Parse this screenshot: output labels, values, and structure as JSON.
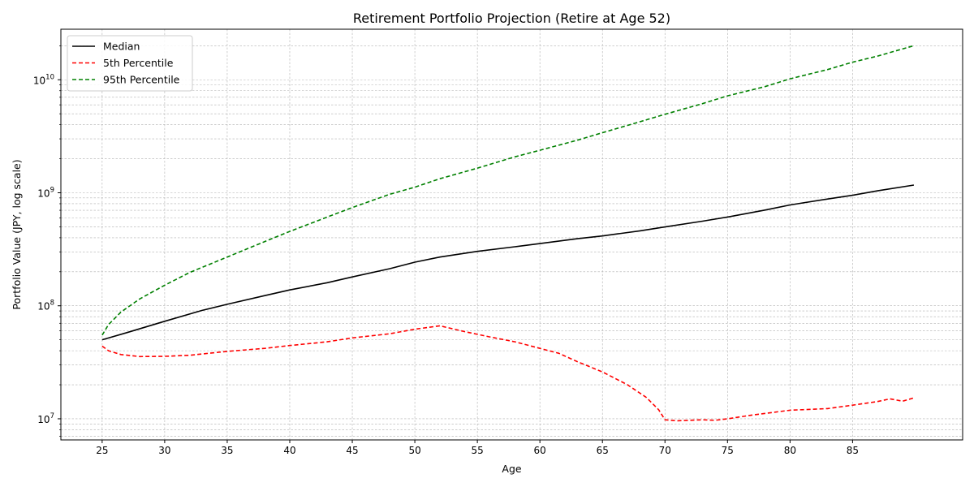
{
  "chart_data": {
    "type": "line",
    "title": "Retirement Portfolio Projection (Retire at Age 52)",
    "xlabel": "Age",
    "ylabel": "Portfolio Value (JPY, log scale)",
    "y_scale": "log",
    "xlim": [
      21.7,
      93.8
    ],
    "ylim": [
      6500000,
      28000000000
    ],
    "x_ticks": [
      25,
      30,
      35,
      40,
      45,
      50,
      55,
      60,
      65,
      70,
      75,
      80,
      85
    ],
    "y_tick_exponents": [
      7,
      8,
      9,
      10
    ],
    "grid": true,
    "legend_position": "top-left",
    "series": [
      {
        "name": "Median",
        "color": "#000000",
        "dash": "solid",
        "x": [
          25,
          27,
          30,
          33,
          35,
          38,
          40,
          43,
          45,
          48,
          50,
          52,
          55,
          58,
          60,
          63,
          65,
          68,
          70,
          73,
          75,
          78,
          80,
          83,
          85,
          87,
          89.9
        ],
        "values": [
          50000000,
          58000000,
          73000000,
          91000000,
          103000000,
          123000000,
          138000000,
          160000000,
          180000000,
          213000000,
          243000000,
          270000000,
          303000000,
          333000000,
          355000000,
          392000000,
          415000000,
          460000000,
          498000000,
          560000000,
          610000000,
          703000000,
          780000000,
          880000000,
          950000000,
          1040000000,
          1170000000
        ]
      },
      {
        "name": "5th Percentile",
        "color": "#ff0000",
        "dash": "dashed",
        "x": [
          25,
          25.5,
          26.5,
          28,
          30,
          32,
          35,
          38,
          40,
          43,
          45,
          48,
          50,
          52,
          54,
          56,
          58,
          60,
          61.5,
          63,
          65,
          67,
          68.5,
          69.5,
          70,
          71,
          72,
          73,
          74,
          75,
          77,
          80,
          83,
          85,
          87,
          88,
          89,
          89.9
        ],
        "values": [
          44000000,
          40000000,
          37000000,
          35500000,
          35700000,
          36500000,
          39500000,
          42000000,
          44500000,
          48000000,
          52000000,
          56500000,
          62000000,
          66500000,
          59000000,
          53000000,
          48000000,
          42000000,
          38000000,
          32000000,
          26000000,
          20000000,
          15500000,
          12000000,
          9800000,
          9600000,
          9700000,
          9800000,
          9700000,
          10000000,
          10800000,
          11900000,
          12300000,
          13200000,
          14200000,
          15000000,
          14300000,
          15300000
        ]
      },
      {
        "name": "95th Percentile",
        "color": "#008000",
        "dash": "dashed",
        "x": [
          25,
          25.5,
          26.5,
          28,
          30,
          32,
          35,
          38,
          40,
          43,
          45,
          48,
          50,
          52,
          55,
          58,
          60,
          63,
          65,
          68,
          70,
          73,
          75,
          78,
          80,
          83,
          85,
          87,
          89.9
        ],
        "values": [
          55000000,
          68000000,
          88000000,
          115000000,
          152000000,
          197000000,
          270000000,
          370000000,
          455000000,
          610000000,
          740000000,
          970000000,
          1120000000,
          1330000000,
          1650000000,
          2080000000,
          2380000000,
          2920000000,
          3400000000,
          4250000000,
          4950000000,
          6150000000,
          7200000000,
          8700000000,
          10200000000,
          12300000000,
          14300000000,
          16200000000,
          20000000000
        ]
      }
    ]
  }
}
